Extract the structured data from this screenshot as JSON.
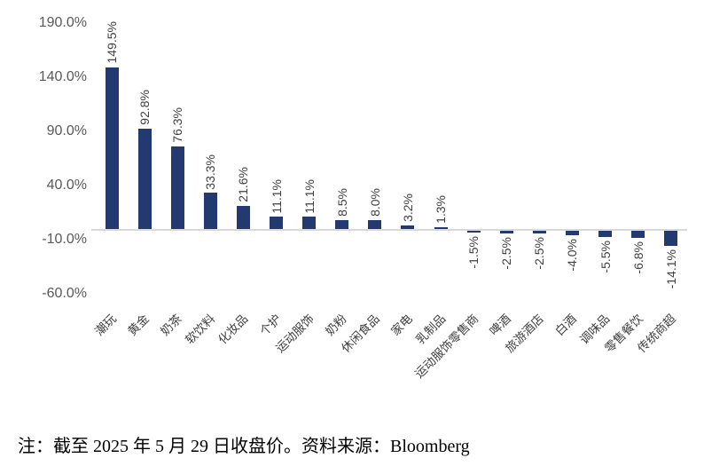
{
  "chart_data": {
    "type": "bar",
    "title": "",
    "xlabel": "",
    "ylabel": "",
    "categories": [
      "潮玩",
      "黄金",
      "奶茶",
      "软饮料",
      "化妆品",
      "个护",
      "运动服饰",
      "奶粉",
      "休闲食品",
      "家电",
      "乳制品",
      "运动服饰零售商",
      "啤酒",
      "旅游酒店",
      "白酒",
      "调味品",
      "零售餐饮",
      "传统商超"
    ],
    "values": [
      149.5,
      92.8,
      76.3,
      33.3,
      21.6,
      11.1,
      11.1,
      8.5,
      8.0,
      3.2,
      1.3,
      -1.5,
      -2.5,
      -2.5,
      -4.0,
      -5.5,
      -6.8,
      -14.1
    ],
    "value_labels": [
      "149.5%",
      "92.8%",
      "76.3%",
      "33.3%",
      "21.6%",
      "11.1%",
      "11.1%",
      "8.5%",
      "8.0%",
      "3.2%",
      "1.3%",
      "-1.5%",
      "-2.5%",
      "-2.5%",
      "-4.0%",
      "-5.5%",
      "-6.8%",
      "-14.1%"
    ],
    "y_tick_labels": [
      "190.0%",
      "140.0%",
      "90.0%",
      "40.0%",
      "-10.0%",
      "-60.0%"
    ],
    "y_tick_values": [
      190,
      140,
      90,
      40,
      -10,
      -60
    ],
    "ylim": [
      -60,
      190
    ],
    "grid": false,
    "legend_position": "none",
    "bar_color": "#223a70",
    "axis_line_color": "#d9d9d9",
    "value_label_color": "#404040",
    "category_label_color": "#404040",
    "y_tick_color": "#595959"
  },
  "note": {
    "text": "注：截至 2025 年 5 月 29 日收盘价。资料来源：Bloomberg"
  }
}
